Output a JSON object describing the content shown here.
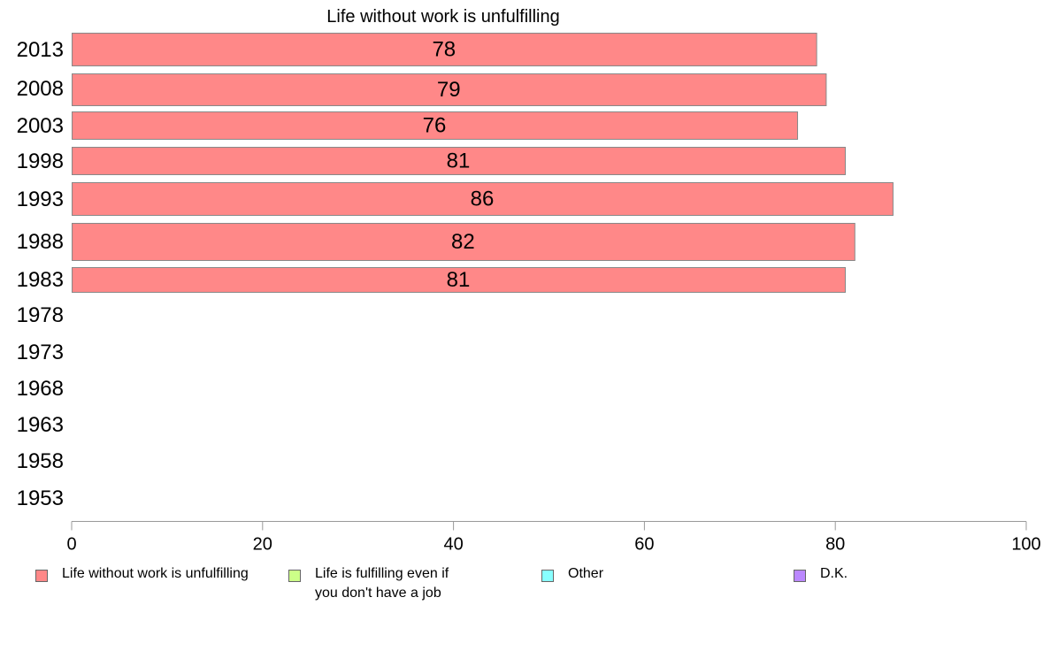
{
  "chart_data": {
    "type": "bar",
    "orientation": "horizontal",
    "title": "Life without work is unfulfilling",
    "categories": [
      "2013",
      "2008",
      "2003",
      "1998",
      "1993",
      "1988",
      "1983",
      "1978",
      "1973",
      "1968",
      "1963",
      "1958",
      "1953"
    ],
    "series": [
      {
        "name": "Life without work is unfulfilling",
        "color": "#ff8888",
        "values": [
          78,
          79,
          76,
          81,
          86,
          82,
          81,
          null,
          null,
          null,
          null,
          null,
          null
        ],
        "value_labels": [
          "78",
          "79",
          "76",
          "81",
          "86",
          "82",
          "81"
        ]
      }
    ],
    "xlim": [
      0,
      100
    ],
    "x_ticks": [
      0,
      20,
      40,
      60,
      80,
      100
    ],
    "x_tick_labels": [
      "0",
      "20",
      "40",
      "60",
      "80",
      "100"
    ],
    "grid": false,
    "legend_position": "bottom"
  },
  "legend": {
    "items": [
      {
        "label": "Life without work is unfulfilling",
        "color": "#ff8888"
      },
      {
        "label": "Life is fulfilling even if\nyou don't have a job",
        "color": "#ccff88"
      },
      {
        "label": "Other",
        "color": "#88ffff"
      },
      {
        "label": "D.K.",
        "color": "#bb88ff"
      }
    ]
  }
}
